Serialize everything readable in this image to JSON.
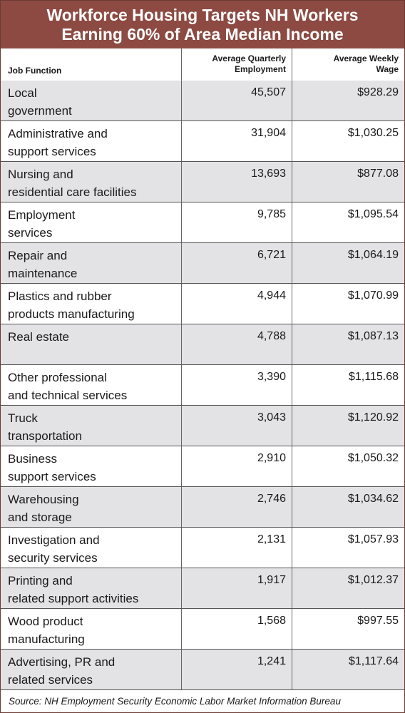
{
  "title": {
    "line1": "Workforce Housing Targets NH Workers",
    "line2": "Earning 60% of Area Median Income"
  },
  "header": {
    "job_function": "Job Function",
    "employment_line1": "Average Quarterly",
    "employment_line2": "Employment",
    "wage_line1": "Average Weekly",
    "wage_line2": "Wage"
  },
  "rows": [
    {
      "line1": "Local",
      "line2": "government",
      "employment": "45,507",
      "wage": "$928.29"
    },
    {
      "line1": "Administrative and",
      "line2": "support services",
      "employment": "31,904",
      "wage": "$1,030.25"
    },
    {
      "line1": "Nursing and",
      "line2": "residential care facilities",
      "employment": "13,693",
      "wage": "$877.08"
    },
    {
      "line1": "Employment",
      "line2": "services",
      "employment": "9,785",
      "wage": "$1,095.54"
    },
    {
      "line1": "Repair and",
      "line2": "maintenance",
      "employment": "6,721",
      "wage": "$1,064.19"
    },
    {
      "line1": "Plastics and rubber",
      "line2": "products manufacturing",
      "employment": "4,944",
      "wage": "$1,070.99"
    },
    {
      "line1": "Real estate",
      "line2": "",
      "employment": "4,788",
      "wage": "$1,087.13"
    },
    {
      "line1": "Other professional",
      "line2": "and technical services",
      "employment": "3,390",
      "wage": "$1,115.68"
    },
    {
      "line1": "Truck",
      "line2": "transportation",
      "employment": "3,043",
      "wage": "$1,120.92"
    },
    {
      "line1": "Business",
      "line2": "support services",
      "employment": "2,910",
      "wage": "$1,050.32"
    },
    {
      "line1": "Warehousing",
      "line2": "and storage",
      "employment": "2,746",
      "wage": "$1,034.62"
    },
    {
      "line1": "Investigation and",
      "line2": "security services",
      "employment": "2,131",
      "wage": "$1,057.93"
    },
    {
      "line1": "Printing and",
      "line2": "related support activities",
      "employment": "1,917",
      "wage": "$1,012.37"
    },
    {
      "line1": "Wood product",
      "line2": "manufacturing",
      "employment": "1,568",
      "wage": "$997.55"
    },
    {
      "line1": "Advertising, PR and",
      "line2": "related services",
      "employment": "1,241",
      "wage": "$1,117.64"
    }
  ],
  "source": "Source: NH Employment Security Economic Labor Market Information Bureau",
  "colors": {
    "title_background": "#8c4a42",
    "shaded_row": "#e3e3e5"
  }
}
